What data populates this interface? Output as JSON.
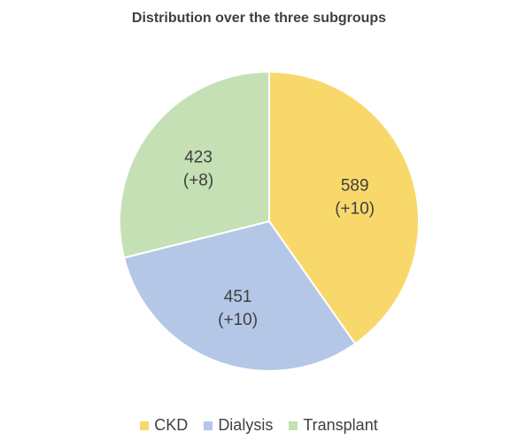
{
  "chart_data": {
    "type": "pie",
    "title": "Distribution over the three subgroups",
    "categories": [
      "CKD",
      "Dialysis",
      "Transplant"
    ],
    "values": [
      589,
      451,
      423
    ],
    "value_labels": [
      "589",
      "451",
      "423"
    ],
    "change_labels": [
      "(+10)",
      "(+10)",
      "(+8)"
    ],
    "colors": [
      "#F9D86B",
      "#B4C7E7",
      "#C5E0B4"
    ],
    "legend_position": "bottom",
    "start_angle": "12 o'clock",
    "direction": "clockwise"
  }
}
